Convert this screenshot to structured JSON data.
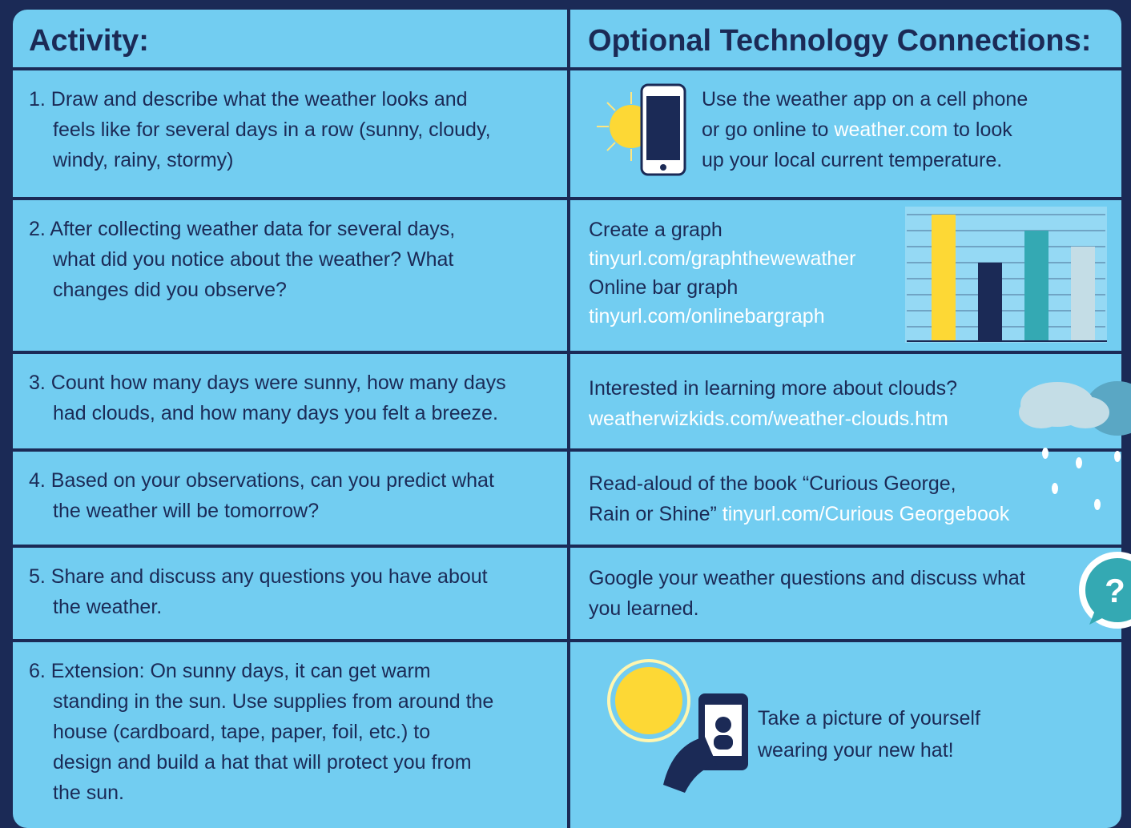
{
  "header": {
    "activity": "Activity:",
    "technology": "Optional Technology Connections:"
  },
  "rows": [
    {
      "activity": [
        "1. Draw and describe what the weather looks and",
        "feels like for several days in a row (sunny, cloudy,",
        "windy, rainy, stormy)"
      ],
      "technology": [
        [
          {
            "text": "Use the weather app on a cell phone"
          }
        ],
        [
          {
            "text": "or go online to "
          },
          {
            "text": "weather.com",
            "color": "#ffffff"
          },
          {
            "text": " to look"
          }
        ],
        [
          {
            "text": "up your local current temperature."
          }
        ]
      ]
    },
    {
      "activity": [
        "2. After collecting weather data for several days,",
        "what did you notice about the weather? What",
        "changes did you observe?"
      ],
      "technology": [
        [
          {
            "text": "Create a graph"
          }
        ],
        [
          {
            "text": "tinyurl.com/graphthewewather",
            "color": "#ffffff"
          }
        ],
        [
          {
            "text": "Online bar graph"
          }
        ],
        [
          {
            "text": "tinyurl.com/onlinebargraph",
            "color": "#ffffff"
          }
        ]
      ]
    },
    {
      "activity": [
        "3. Count how many days were sunny, how many days",
        "had clouds, and how many days you felt a breeze."
      ],
      "technology": [
        [
          {
            "text": "Interested in learning more about clouds?"
          }
        ],
        [
          {
            "text": "weatherwizkids.com/weather-clouds.htm",
            "color": "#ffffff"
          }
        ]
      ]
    },
    {
      "activity": [
        "4. Based on your observations, can you predict what",
        "the weather will be tomorrow?"
      ],
      "technology": [
        [
          {
            "text": "Read-aloud of the book “Curious George,"
          }
        ],
        [
          {
            "text": "Rain or Shine” "
          },
          {
            "text": "tinyurl.com/Curious Georgebook",
            "color": "#ffffff"
          }
        ]
      ]
    },
    {
      "activity": [
        "5. Share and discuss any questions you have about",
        "the weather."
      ],
      "technology": [
        [
          {
            "text": "Google your weather questions and discuss what"
          }
        ],
        [
          {
            "text": "you learned."
          }
        ]
      ]
    },
    {
      "activity": [
        "6. Extension: On sunny days, it can get warm",
        "standing in the sun. Use supplies from around the",
        "house (cardboard, tape, paper, foil, etc.) to",
        "design and build a hat that will protect you from",
        "the sun."
      ],
      "technology": [
        [
          {
            "text": "Take a picture of yourself"
          }
        ],
        [
          {
            "text": "wearing your new hat!"
          }
        ]
      ]
    }
  ]
}
